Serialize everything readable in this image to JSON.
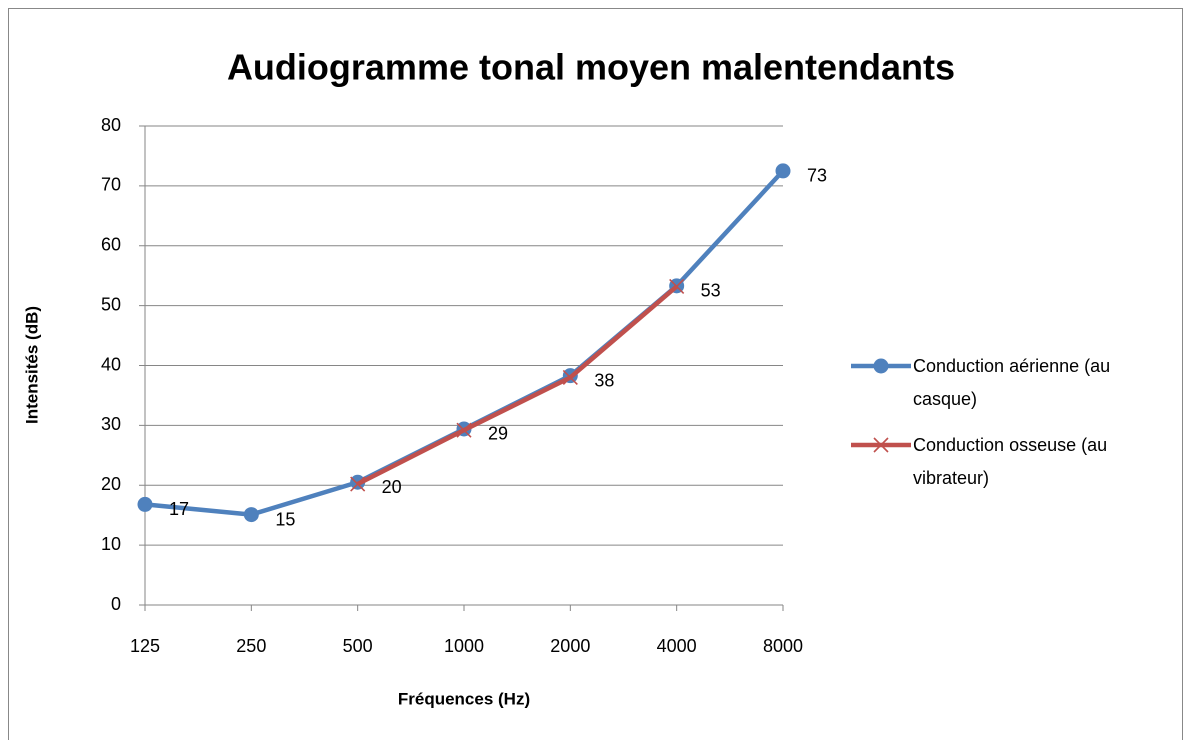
{
  "chart_data": {
    "type": "line",
    "title": "Audiogramme tonal moyen malentendants",
    "x_label": "Fréquences (Hz)",
    "y_label": "Intensités (dB)",
    "categories": [
      "125",
      "250",
      "500",
      "1000",
      "2000",
      "4000",
      "8000"
    ],
    "series": [
      {
        "name": "Conduction aérienne (au casque)",
        "color": "#4f81bd",
        "marker": "circle",
        "values": [
          16.8,
          15.1,
          20.5,
          29.4,
          38.3,
          53.3,
          72.5
        ],
        "value_labels": [
          "17",
          "15",
          "20",
          "29",
          "38",
          "53",
          "73"
        ]
      },
      {
        "name": "Conduction osseuse (au vibrateur)",
        "color": "#c0504d",
        "marker": "x",
        "values": [
          null,
          null,
          20.2,
          29.2,
          38.0,
          53.2,
          null
        ]
      }
    ],
    "ylim": [
      0,
      80
    ],
    "yticks": [
      0,
      10,
      20,
      30,
      40,
      50,
      60,
      70,
      80
    ],
    "grid": true,
    "legend": "right"
  }
}
